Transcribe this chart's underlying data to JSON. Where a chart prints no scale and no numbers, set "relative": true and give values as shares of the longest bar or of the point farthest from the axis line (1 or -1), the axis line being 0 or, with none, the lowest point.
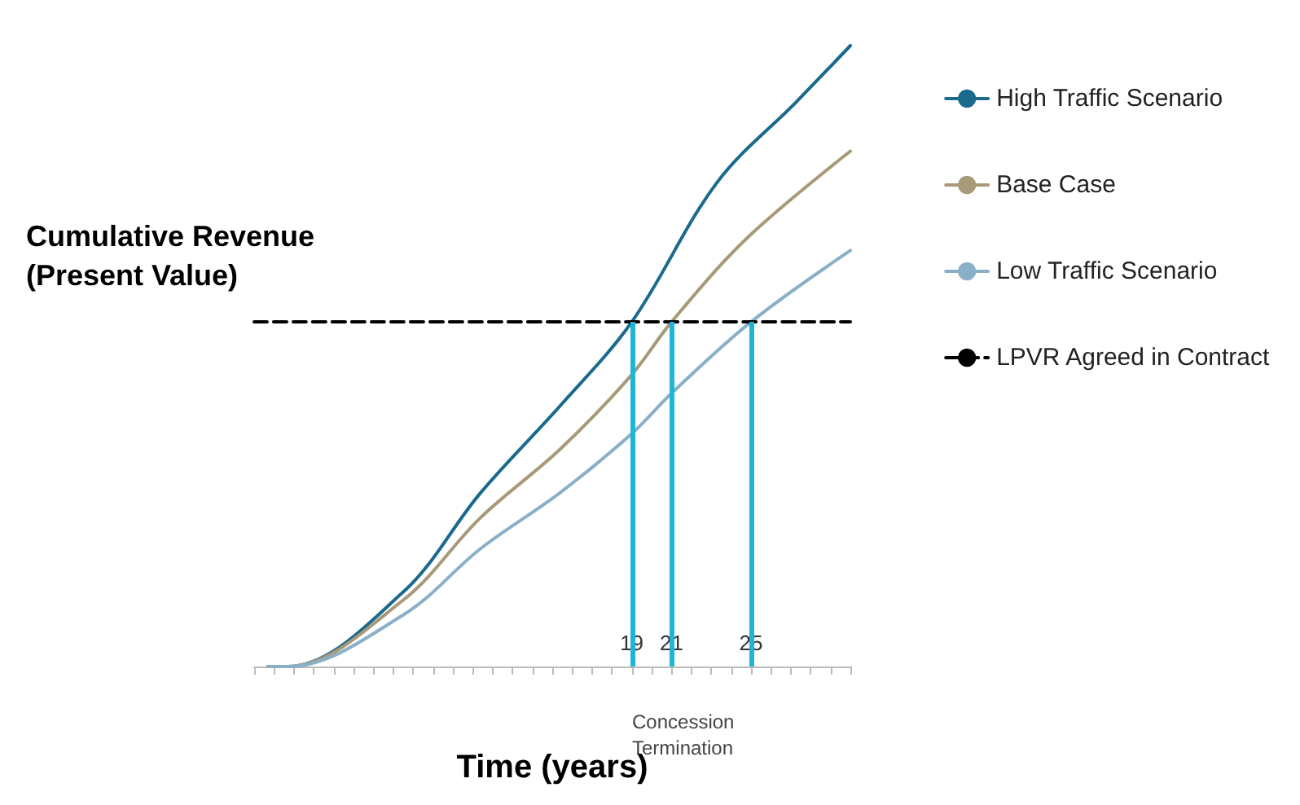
{
  "chart_data": {
    "type": "line",
    "relative": true,
    "xlabel": "Time (years)",
    "ylabel": "Cumulative Revenue (Present Value)",
    "xlim": [
      0,
      30
    ],
    "xticks": [
      {
        "value": 0,
        "label": null
      },
      {
        "value": 1,
        "label": null
      },
      {
        "value": 2,
        "label": null
      },
      {
        "value": 3,
        "label": null
      },
      {
        "value": 4,
        "label": null
      },
      {
        "value": 5,
        "label": null
      },
      {
        "value": 6,
        "label": null
      },
      {
        "value": 7,
        "label": null
      },
      {
        "value": 8,
        "label": null
      },
      {
        "value": 9,
        "label": null
      },
      {
        "value": 10,
        "label": null
      },
      {
        "value": 11,
        "label": null
      },
      {
        "value": 12,
        "label": null
      },
      {
        "value": 13,
        "label": null
      },
      {
        "value": 14,
        "label": null
      },
      {
        "value": 15,
        "label": null
      },
      {
        "value": 16,
        "label": null
      },
      {
        "value": 17,
        "label": null
      },
      {
        "value": 18,
        "label": null
      },
      19,
      {
        "value": 20,
        "label": null
      },
      21,
      {
        "value": 22,
        "label": null
      },
      {
        "value": 23,
        "label": null
      },
      {
        "value": 24,
        "label": null
      },
      25,
      {
        "value": 26,
        "label": null
      },
      {
        "value": 27,
        "label": null
      },
      {
        "value": 28,
        "label": null
      },
      {
        "value": 29,
        "label": null
      },
      {
        "value": 30,
        "label": null
      }
    ],
    "series": [
      {
        "name": "High Traffic Scenario",
        "color": "#1a6a8e",
        "x": [
          0.7,
          1.7,
          7.5,
          11.4,
          15.4,
          19,
          23.3,
          27.3,
          30
        ],
        "values": [
          0,
          0,
          0.12,
          0.28,
          0.42,
          0.555,
          0.78,
          0.91,
          1
        ]
      },
      {
        "name": "Base Case",
        "color": "#a89a78",
        "x": [
          0.7,
          1.7,
          7.5,
          11.4,
          15.4,
          19,
          21,
          24.8,
          30
        ],
        "values": [
          0,
          0,
          0.107,
          0.24,
          0.35,
          0.47,
          0.555,
          0.69,
          0.83
        ]
      },
      {
        "name": "Low Traffic Scenario",
        "color": "#8ab0c8",
        "x": [
          0.7,
          1.7,
          7.5,
          11.4,
          15.4,
          19,
          21,
          25,
          30
        ],
        "values": [
          0,
          0,
          0.083,
          0.19,
          0.28,
          0.375,
          0.44,
          0.555,
          0.67
        ]
      },
      {
        "name": "LPVR Agreed in Contract",
        "color": "#000000",
        "line_style": "dashed",
        "x": [
          0,
          30
        ],
        "values": [
          0.555,
          0.555
        ]
      }
    ],
    "ref_lines": [
      {
        "axis": "x",
        "value": 19,
        "color": "#1fb5d6"
      },
      {
        "axis": "x",
        "value": 21,
        "color": "#1fb5d6"
      },
      {
        "axis": "x",
        "value": 25,
        "color": "#1fb5d6"
      }
    ],
    "annotations": [
      "Concession Termination"
    ],
    "legend": "right",
    "grid": false,
    "marker": "none"
  }
}
